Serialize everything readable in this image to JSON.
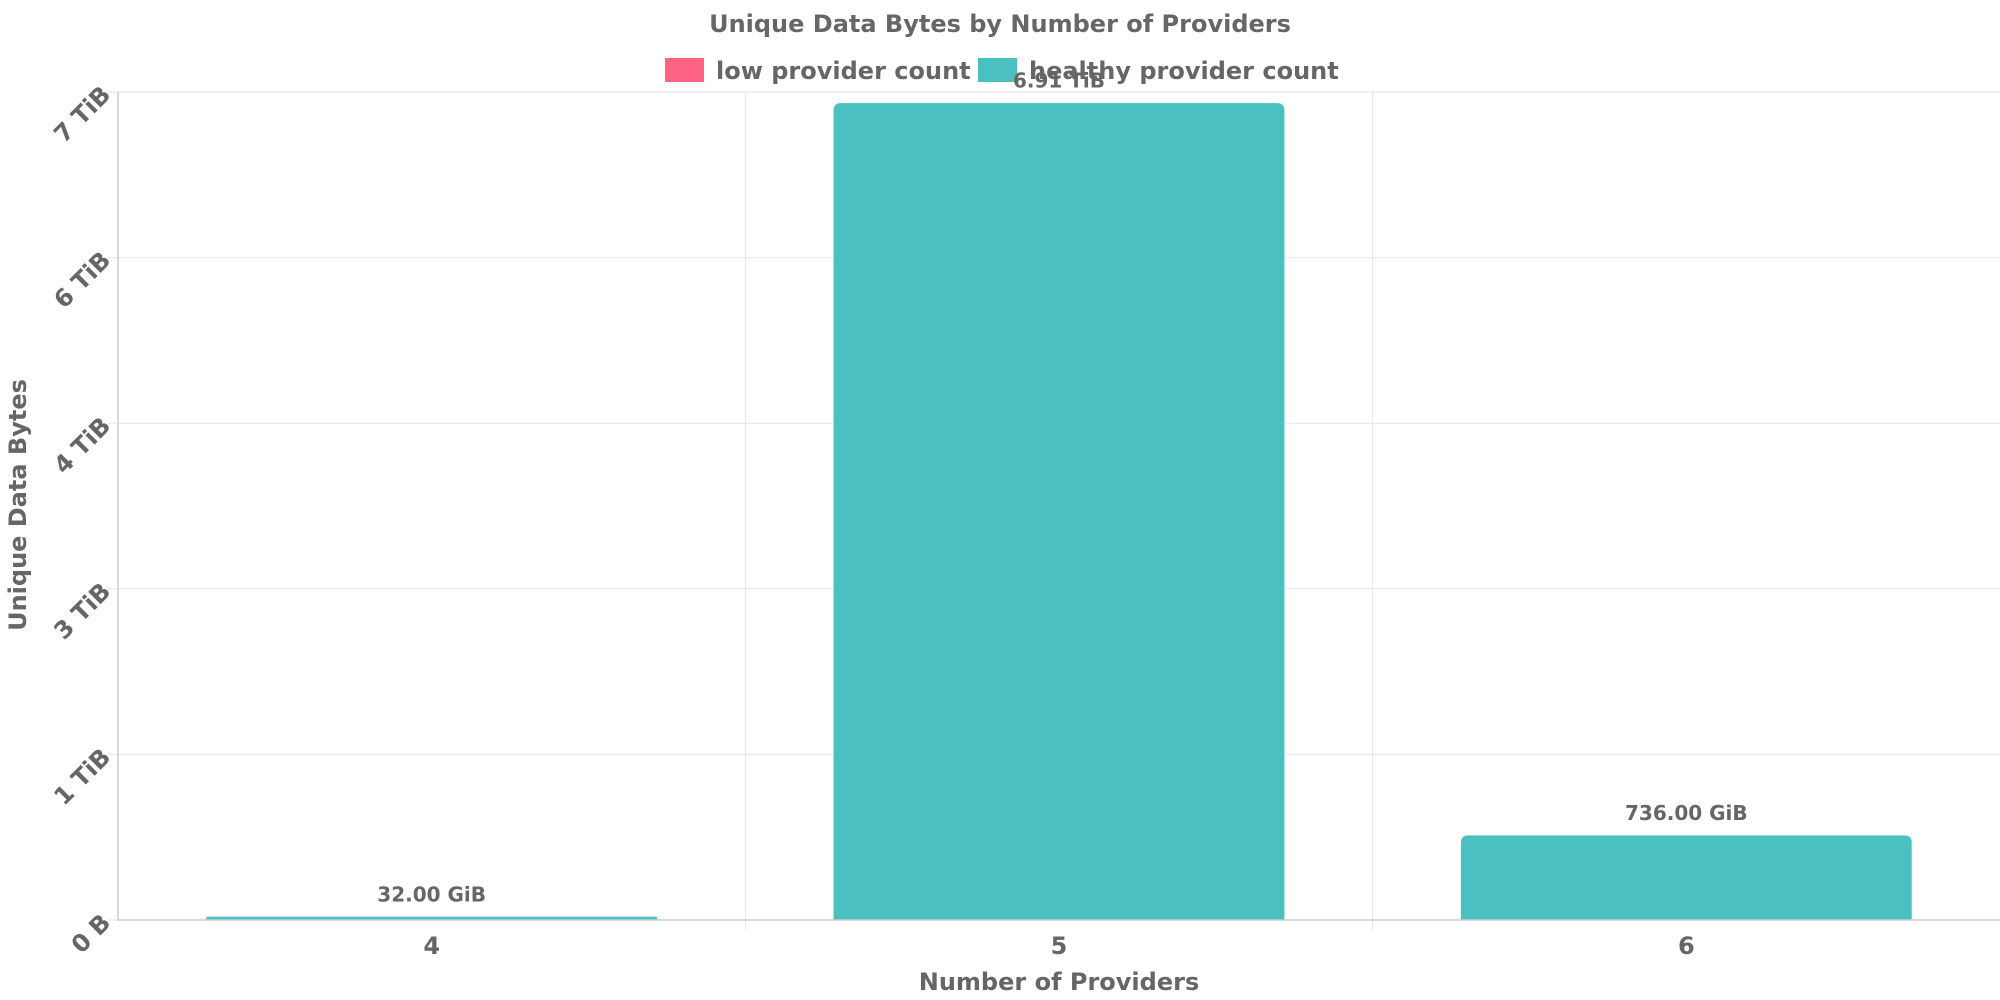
{
  "chart_data": {
    "type": "bar",
    "title": "Unique Data Bytes by Number of Providers",
    "xlabel": "Number of Providers",
    "ylabel": "Unique Data Bytes",
    "categories": [
      "4",
      "5",
      "6"
    ],
    "series": [
      {
        "name": "low provider count",
        "color": "#ff6384",
        "values": [
          null,
          null,
          null
        ]
      },
      {
        "name": "healthy provider count",
        "color": "#4bc0c0",
        "values": [
          0.03125,
          6.91,
          0.71875
        ]
      }
    ],
    "data_labels": [
      "32.00 GiB",
      "6.91 TiB",
      "736.00 GiB"
    ],
    "y_unit": "TiB",
    "y_tick_labels": [
      "0 B",
      "1 TiB",
      "3 TiB",
      "4 TiB",
      "6 TiB",
      "7 TiB"
    ],
    "y_tick_values": [
      0,
      1.4,
      2.8,
      4.2,
      5.6,
      7.0
    ],
    "ylim": [
      0,
      7.0
    ],
    "grid": true,
    "legend_position": "top-center"
  }
}
